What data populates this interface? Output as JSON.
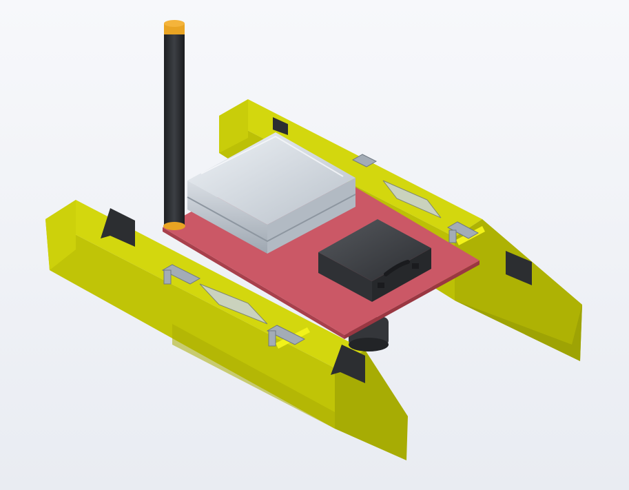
{
  "scene": {
    "subject": "",
    "colors": {
      "background": "#f1f3f7",
      "pontoon_top": "#cfd30c",
      "pontoon_side": "#b8bc05",
      "pontoon_end": "#9ea304",
      "deck": "#c95562",
      "deck_edge": "#a8404c",
      "mast": "#2a2c2f",
      "mast_cap": "#e9a423",
      "silver_case": "#c9d0d8",
      "black_case": "#3a3c40",
      "frame": "#9aa3ad",
      "bracket": "#2c2e31"
    }
  }
}
